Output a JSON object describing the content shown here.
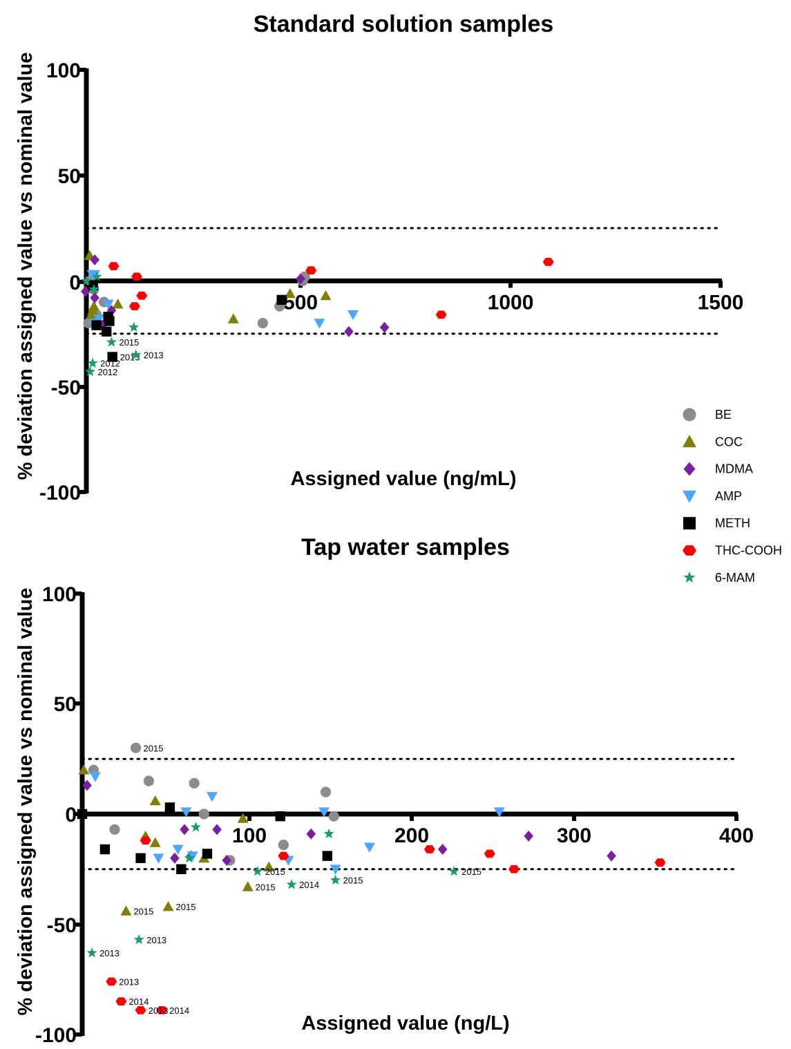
{
  "chart_data": [
    {
      "type": "scatter",
      "title": "Standard solution samples",
      "xlabel": "Assigned value (ng/mL)",
      "ylabel": "% deviation assigned value vs nominal value",
      "xlim": [
        -10,
        1500
      ],
      "ylim": [
        -100,
        100
      ],
      "x_ticks": [
        "500",
        "1000",
        "1500"
      ],
      "y_ticks": [
        "100",
        "50",
        "0",
        "-50",
        "-100"
      ],
      "reference_lines": [
        25,
        -25
      ],
      "grid": false,
      "series": [
        {
          "name": "BE",
          "points": [
            [
              -5,
              -20
            ],
            [
              0,
              0
            ],
            [
              8,
              -4
            ],
            [
              14,
              -16
            ],
            [
              32,
              -10
            ],
            [
              410,
              -20
            ],
            [
              450,
              -12
            ],
            [
              505,
              0
            ],
            [
              510,
              2
            ]
          ],
          "labels": []
        },
        {
          "name": "COC",
          "points": [
            [
              -2,
              12
            ],
            [
              2,
              -16
            ],
            [
              5,
              -14
            ],
            [
              8,
              -12
            ],
            [
              65,
              -11
            ],
            [
              340,
              -18
            ],
            [
              475,
              -6
            ],
            [
              560,
              -7
            ]
          ],
          "labels": []
        },
        {
          "name": "MDMA",
          "points": [
            [
              -12,
              -5
            ],
            [
              10,
              10
            ],
            [
              10,
              -8
            ],
            [
              28,
              -21
            ],
            [
              50,
              -14
            ],
            [
              615,
              -24
            ],
            [
              700,
              -22
            ],
            [
              500,
              1
            ]
          ],
          "labels": []
        },
        {
          "name": "AMP",
          "points": [
            [
              4,
              3
            ],
            [
              10,
              3
            ],
            [
              8,
              -20
            ],
            [
              20,
              -18
            ],
            [
              42,
              -11
            ],
            [
              545,
              -20
            ],
            [
              625,
              -16
            ]
          ],
          "labels": []
        },
        {
          "name": "METH",
          "points": [
            [
              6,
              -2
            ],
            [
              14,
              -21
            ],
            [
              38,
              -24
            ],
            [
              42,
              -17
            ],
            [
              45,
              -19
            ],
            [
              52,
              -36
            ],
            [
              455,
              -9
            ]
          ],
          "labels": [
            {
              "i": 5,
              "text": "2013"
            }
          ]
        },
        {
          "name": "THC-COOH",
          "points": [
            [
              55,
              7
            ],
            [
              105,
              -12
            ],
            [
              110,
              2
            ],
            [
              122,
              -7
            ],
            [
              525,
              5
            ],
            [
              835,
              -16
            ],
            [
              1090,
              9
            ]
          ],
          "labels": []
        },
        {
          "name": "6-MAM",
          "points": [
            [
              -10,
              0
            ],
            [
              8,
              -4
            ],
            [
              15,
              2
            ],
            [
              50,
              -29
            ],
            [
              103,
              -22
            ],
            [
              108,
              -35
            ],
            [
              5,
              -39
            ],
            [
              -1,
              -43
            ]
          ],
          "labels": [
            {
              "i": 3,
              "text": "2015"
            },
            {
              "i": 5,
              "text": "2013"
            },
            {
              "i": 6,
              "text": "2012"
            },
            {
              "i": 7,
              "text": "2012"
            }
          ]
        }
      ]
    },
    {
      "type": "scatter",
      "title": "Tap water samples",
      "xlabel": "Assigned value (ng/L)",
      "ylabel": "% deviation assigned value vs nominal value",
      "xlim": [
        -3,
        400
      ],
      "ylim": [
        -100,
        100
      ],
      "x_ticks": [
        "100",
        "200",
        "300",
        "400"
      ],
      "y_ticks": [
        "100",
        "50",
        "0",
        "-50",
        "-100"
      ],
      "reference_lines": [
        25,
        -25
      ],
      "grid": false,
      "series": [
        {
          "name": "BE",
          "points": [
            [
              4,
              20
            ],
            [
              17,
              -7
            ],
            [
              30,
              30
            ],
            [
              38,
              15
            ],
            [
              66,
              14
            ],
            [
              72,
              0
            ],
            [
              88,
              -21
            ],
            [
              121,
              -14
            ],
            [
              147,
              10
            ],
            [
              152,
              -1
            ]
          ],
          "labels": [
            {
              "i": 2,
              "text": "2015"
            }
          ]
        },
        {
          "name": "COC",
          "points": [
            [
              -2,
              20
            ],
            [
              24,
              -44
            ],
            [
              36,
              -10
            ],
            [
              42,
              6
            ],
            [
              42,
              -13
            ],
            [
              50,
              -42
            ],
            [
              72,
              -20
            ],
            [
              96,
              -2
            ],
            [
              99,
              -33
            ],
            [
              112,
              -24
            ]
          ],
          "labels": [
            {
              "i": 1,
              "text": "2015"
            },
            {
              "i": 5,
              "text": "2015"
            },
            {
              "i": 8,
              "text": "2015"
            }
          ]
        },
        {
          "name": "MDMA",
          "points": [
            [
              0,
              13
            ],
            [
              54,
              -20
            ],
            [
              60,
              -7
            ],
            [
              64,
              -19
            ],
            [
              80,
              -7
            ],
            [
              86,
              -21
            ],
            [
              138,
              -9
            ],
            [
              219,
              -16
            ],
            [
              272,
              -10
            ],
            [
              323,
              -19
            ]
          ],
          "labels": []
        },
        {
          "name": "AMP",
          "points": [
            [
              5,
              17
            ],
            [
              44,
              -20
            ],
            [
              56,
              -16
            ],
            [
              61,
              1
            ],
            [
              65,
              -19
            ],
            [
              77,
              8
            ],
            [
              124,
              -21
            ],
            [
              146,
              1
            ],
            [
              153,
              -25
            ],
            [
              174,
              -15
            ],
            [
              254,
              1
            ]
          ],
          "labels": []
        },
        {
          "name": "METH",
          "points": [
            [
              -3,
              0
            ],
            [
              11,
              -16
            ],
            [
              33,
              -20
            ],
            [
              51,
              3
            ],
            [
              58,
              -25
            ],
            [
              74,
              -18
            ],
            [
              119,
              -1
            ],
            [
              148,
              -19
            ]
          ],
          "labels": []
        },
        {
          "name": "THC-COOH",
          "points": [
            [
              15,
              -76
            ],
            [
              21,
              -85
            ],
            [
              33,
              -89
            ],
            [
              36,
              -12
            ],
            [
              46,
              -89
            ],
            [
              121,
              -19
            ],
            [
              211,
              -16
            ],
            [
              248,
              -18
            ],
            [
              263,
              -25
            ],
            [
              353,
              -22
            ]
          ],
          "labels": [
            {
              "i": 0,
              "text": "2013"
            },
            {
              "i": 1,
              "text": "2014"
            },
            {
              "i": 2,
              "text": "2013"
            },
            {
              "i": 4,
              "text": "2014"
            }
          ]
        },
        {
          "name": "6-MAM",
          "points": [
            [
              3,
              -63
            ],
            [
              32,
              -57
            ],
            [
              63,
              -20
            ],
            [
              67,
              -6
            ],
            [
              105,
              -26
            ],
            [
              126,
              -32
            ],
            [
              149,
              -9
            ],
            [
              153,
              -30
            ],
            [
              226,
              -26
            ]
          ],
          "labels": [
            {
              "i": 0,
              "text": "2013"
            },
            {
              "i": 1,
              "text": "2013"
            },
            {
              "i": 4,
              "text": "2015"
            },
            {
              "i": 5,
              "text": "2014"
            },
            {
              "i": 7,
              "text": "2015"
            },
            {
              "i": 8,
              "text": "2015"
            }
          ]
        }
      ]
    }
  ],
  "legend": {
    "placement": "right",
    "items": [
      {
        "name": "BE",
        "shape": "circle",
        "color": "#8c8c8c"
      },
      {
        "name": "COC",
        "shape": "triangle-up",
        "color": "#808000"
      },
      {
        "name": "MDMA",
        "shape": "diamond",
        "color": "#7b1fa2"
      },
      {
        "name": "AMP",
        "shape": "triangle-down",
        "color": "#4da6ff"
      },
      {
        "name": "METH",
        "shape": "square",
        "color": "#000000"
      },
      {
        "name": "THC-COOH",
        "shape": "hexagon",
        "color": "#ff0000"
      },
      {
        "name": "6-MAM",
        "shape": "star",
        "color": "#1a9c6b"
      }
    ]
  }
}
